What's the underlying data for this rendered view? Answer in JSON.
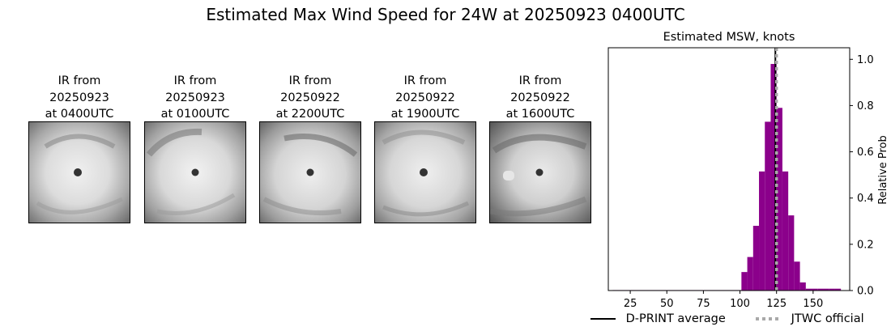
{
  "figure": {
    "title": "Estimated Max Wind Speed for 24W at 20250923 0400UTC"
  },
  "ir_panels": [
    {
      "caption": [
        "IR from",
        "20250923",
        "at 0400UTC"
      ],
      "icon": "typhoon-ir-image"
    },
    {
      "caption": [
        "IR from",
        "20250923",
        "at 0100UTC"
      ],
      "icon": "typhoon-ir-image"
    },
    {
      "caption": [
        "IR from",
        "20250922",
        "at 2200UTC"
      ],
      "icon": "typhoon-ir-image"
    },
    {
      "caption": [
        "IR from",
        "20250922",
        "at 1900UTC"
      ],
      "icon": "typhoon-ir-image"
    },
    {
      "caption": [
        "IR from",
        "20250922",
        "at 1600UTC"
      ],
      "icon": "typhoon-ir-image"
    }
  ],
  "chart_data": {
    "type": "bar",
    "title": "Estimated MSW, knots",
    "xlabel": "",
    "ylabel": "Relative Prob",
    "xlim": [
      10,
      175
    ],
    "ylim": [
      0,
      1.05
    ],
    "xticks": [
      25,
      50,
      75,
      100,
      125,
      150
    ],
    "yticks": [
      0.0,
      0.2,
      0.4,
      0.6,
      0.8,
      1.0
    ],
    "bin_width": 4,
    "bar_color": "#8b008b",
    "bins": [
      {
        "x": 15,
        "y": 0.002
      },
      {
        "x": 19,
        "y": 0.002
      },
      {
        "x": 23,
        "y": 0.002
      },
      {
        "x": 27,
        "y": 0.002
      },
      {
        "x": 31,
        "y": 0.002
      },
      {
        "x": 35,
        "y": 0.002
      },
      {
        "x": 39,
        "y": 0.002
      },
      {
        "x": 43,
        "y": 0.002
      },
      {
        "x": 47,
        "y": 0.002
      },
      {
        "x": 51,
        "y": 0.002
      },
      {
        "x": 55,
        "y": 0.002
      },
      {
        "x": 59,
        "y": 0.002
      },
      {
        "x": 63,
        "y": 0.002
      },
      {
        "x": 67,
        "y": 0.002
      },
      {
        "x": 71,
        "y": 0.002
      },
      {
        "x": 75,
        "y": 0.002
      },
      {
        "x": 79,
        "y": 0.002
      },
      {
        "x": 83,
        "y": 0.002
      },
      {
        "x": 87,
        "y": 0.002
      },
      {
        "x": 91,
        "y": 0.002
      },
      {
        "x": 95,
        "y": 0.002
      },
      {
        "x": 99,
        "y": 0.002
      },
      {
        "x": 103,
        "y": 0.08
      },
      {
        "x": 107,
        "y": 0.145
      },
      {
        "x": 111,
        "y": 0.28
      },
      {
        "x": 115,
        "y": 0.515
      },
      {
        "x": 119,
        "y": 0.73
      },
      {
        "x": 123,
        "y": 0.98
      },
      {
        "x": 127,
        "y": 0.79
      },
      {
        "x": 131,
        "y": 0.515
      },
      {
        "x": 135,
        "y": 0.325
      },
      {
        "x": 139,
        "y": 0.125
      },
      {
        "x": 143,
        "y": 0.035
      },
      {
        "x": 147,
        "y": 0.008
      },
      {
        "x": 151,
        "y": 0.008
      },
      {
        "x": 155,
        "y": 0.008
      },
      {
        "x": 159,
        "y": 0.008
      },
      {
        "x": 163,
        "y": 0.008
      },
      {
        "x": 167,
        "y": 0.008
      }
    ],
    "vlines": [
      {
        "name": "D-PRINT average",
        "x": 124.2,
        "color": "#000000",
        "style": "solid"
      },
      {
        "name": "JTWC official",
        "x": 125,
        "color": "#a9a9a9",
        "style": "dashed"
      }
    ],
    "legend_placement": "bottom"
  }
}
